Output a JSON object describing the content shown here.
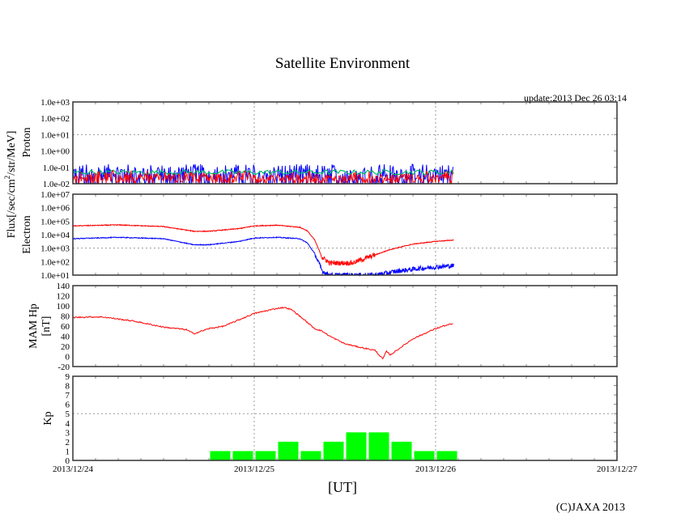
{
  "title": "Satellite Environment",
  "update": "update:2013 Dec 26 03:14",
  "xlabel": "[UT]",
  "copyright": "(C)JAXA 2013",
  "flux_label_prefix": "Flux[/sec/cm",
  "flux_label_sup": "2",
  "flux_label_suffix": "/str/MeV]",
  "colors": {
    "red": "#ff0000",
    "blue": "#0000ff",
    "green": "#00c060",
    "kp": "#00ff00",
    "frame": "#333333",
    "grid": "#999999"
  },
  "chart_data": [
    {
      "type": "line",
      "name": "proton",
      "ylabel": "Proton",
      "yscale": "log",
      "ylim": [
        0.01,
        1000
      ],
      "yticks": [
        "1.0e+03",
        "1.0e+02",
        "1.0e+01",
        "1.0e+00",
        "1.0e-01",
        "1.0e-02"
      ],
      "grid_y": [
        10
      ],
      "series": [
        {
          "name": "blue",
          "color": "#0000ff",
          "level": 0.05,
          "noise_decades": 0.5
        },
        {
          "name": "green",
          "color": "#00c060",
          "level": 0.05,
          "noise_decades": 0.15
        },
        {
          "name": "red",
          "color": "#ff0000",
          "level": 0.02,
          "noise_decades": 0.3
        }
      ],
      "x_hours_range": [
        0,
        50.4
      ]
    },
    {
      "type": "line",
      "name": "electron",
      "ylabel": "Electron",
      "yscale": "log",
      "ylim": [
        10,
        10000000
      ],
      "yticks": [
        "1.0e+07",
        "1.0e+06",
        "1.0e+05",
        "1.0e+04",
        "1.0e+03",
        "1.0e+02",
        "1.0e+01"
      ],
      "grid_y": [
        1000
      ],
      "series": [
        {
          "name": "red",
          "color": "#ff0000",
          "x": [
            0,
            6,
            12,
            16,
            18,
            22,
            24,
            27,
            30,
            31,
            32,
            33,
            34,
            35,
            37,
            39,
            42,
            45,
            48,
            50.4
          ],
          "log_y": [
            4.65,
            4.72,
            4.6,
            4.25,
            4.25,
            4.45,
            4.65,
            4.7,
            4.55,
            4.3,
            3.6,
            2.3,
            1.9,
            1.9,
            1.9,
            2.3,
            2.9,
            3.3,
            3.5,
            3.6
          ]
        },
        {
          "name": "blue",
          "color": "#0000ff",
          "x": [
            0,
            6,
            12,
            16,
            18,
            22,
            24,
            27,
            30,
            31,
            32,
            33,
            34,
            37,
            40,
            43,
            46,
            48,
            50.4
          ],
          "log_y": [
            3.7,
            3.8,
            3.7,
            3.25,
            3.25,
            3.5,
            3.75,
            3.8,
            3.7,
            3.4,
            2.6,
            1.3,
            1.0,
            1.0,
            1.0,
            1.3,
            1.5,
            1.6,
            1.7
          ]
        }
      ],
      "x_hours_range": [
        0,
        50.4
      ]
    },
    {
      "type": "line",
      "name": "mam-hp",
      "ylabel_line1": "MAM Hp",
      "ylabel_line2": "[nT]",
      "ylim": [
        -20,
        140
      ],
      "yticks": [
        "140",
        "120",
        "100",
        "80",
        "60",
        "40",
        "20",
        "0",
        "-20"
      ],
      "grid_y": [],
      "series": [
        {
          "name": "hp",
          "color": "#ff0000",
          "x": [
            0,
            2,
            4,
            8,
            12,
            15,
            16,
            18,
            20,
            24,
            27,
            28,
            29,
            30,
            32,
            33,
            34,
            36,
            38,
            40,
            41,
            41.5,
            42,
            45,
            48,
            49,
            50.4
          ],
          "y": [
            77,
            78,
            78,
            70,
            58,
            53,
            45,
            55,
            60,
            85,
            95,
            97,
            92,
            80,
            55,
            50,
            40,
            25,
            18,
            12,
            -5,
            10,
            3,
            35,
            55,
            60,
            65
          ]
        }
      ],
      "x_hours_range": [
        0,
        50.4
      ]
    },
    {
      "type": "bar",
      "name": "kp",
      "ylabel": "Kp",
      "ylim": [
        0,
        9
      ],
      "yticks": [
        "9",
        "8",
        "7",
        "6",
        "5",
        "4",
        "3",
        "2",
        "1",
        "0"
      ],
      "grid_y": [
        5
      ],
      "bin_hours": 3,
      "bin_start_hours": [
        18,
        21,
        24,
        27,
        30,
        33,
        36,
        39,
        42,
        45,
        48
      ],
      "values": [
        1,
        1,
        1,
        2,
        1,
        2,
        3,
        3,
        2,
        1,
        1
      ]
    }
  ],
  "x_axis": {
    "range_hours": [
      0,
      72
    ],
    "ticks": [
      "2013/12/24",
      "2013/12/25",
      "2013/12/26",
      "2013/12/27"
    ],
    "grid_hours": [
      24,
      48
    ]
  }
}
